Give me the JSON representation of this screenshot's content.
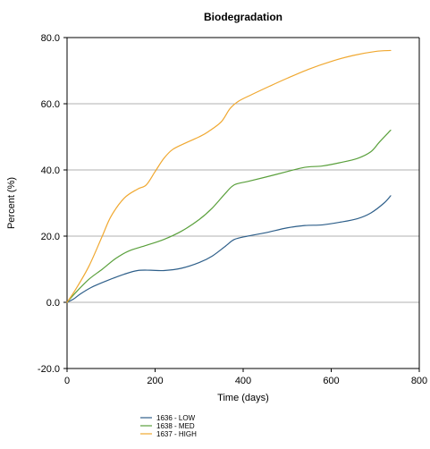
{
  "chart_data": {
    "type": "line",
    "title": "Biodegradation",
    "xlabel": "Time (days)",
    "ylabel": "Percent (%)",
    "xlim": [
      0,
      800
    ],
    "ylim": [
      -20,
      80
    ],
    "x_ticks": [
      0,
      200,
      400,
      600,
      800
    ],
    "y_ticks": [
      -20.0,
      0.0,
      20.0,
      40.0,
      60.0,
      80.0
    ],
    "x_tick_labels": [
      "0",
      "200",
      "400",
      "600",
      "800"
    ],
    "y_tick_labels": [
      "-20.0",
      "0.0",
      "20.0",
      "40.0",
      "60.0",
      "80.0"
    ],
    "grid": "horizontal",
    "legend_position": "bottom",
    "series": [
      {
        "name": "1636 - LOW",
        "color": "#2e5f8a",
        "x": [
          0,
          15,
          30,
          55,
          90,
          130,
          160,
          190,
          220,
          260,
          300,
          330,
          360,
          380,
          410,
          450,
          500,
          540,
          580,
          620,
          660,
          690,
          720,
          735
        ],
        "y": [
          0,
          1,
          2.5,
          4.5,
          6.5,
          8.5,
          9.6,
          9.7,
          9.6,
          10.3,
          12,
          14,
          17,
          19,
          20,
          21,
          22.5,
          23.2,
          23.4,
          24.2,
          25.3,
          27,
          30,
          32.2
        ]
      },
      {
        "name": "1638 - MED",
        "color": "#5aa03c",
        "x": [
          0,
          20,
          50,
          80,
          110,
          140,
          180,
          220,
          260,
          300,
          330,
          360,
          380,
          410,
          450,
          500,
          540,
          580,
          620,
          660,
          690,
          710,
          735
        ],
        "y": [
          0,
          3,
          7,
          10,
          13.2,
          15.5,
          17.2,
          19,
          21.5,
          25,
          28.5,
          33,
          35.5,
          36.5,
          37.8,
          39.5,
          40.8,
          41.2,
          42.2,
          43.5,
          45.5,
          48.5,
          52
        ]
      },
      {
        "name": "1637 - HIGH",
        "color": "#f0a830",
        "x": [
          0,
          20,
          50,
          80,
          100,
          130,
          160,
          180,
          200,
          220,
          240,
          270,
          300,
          320,
          350,
          370,
          390,
          420,
          460,
          500,
          550,
          600,
          650,
          700,
          735
        ],
        "y": [
          0,
          4,
          11,
          20,
          26,
          31.5,
          34.2,
          35.5,
          39.5,
          43.5,
          46.2,
          48.2,
          50,
          51.5,
          54.5,
          58.5,
          60.8,
          62.8,
          65.3,
          67.7,
          70.5,
          72.8,
          74.6,
          75.8,
          76.1
        ]
      }
    ]
  }
}
